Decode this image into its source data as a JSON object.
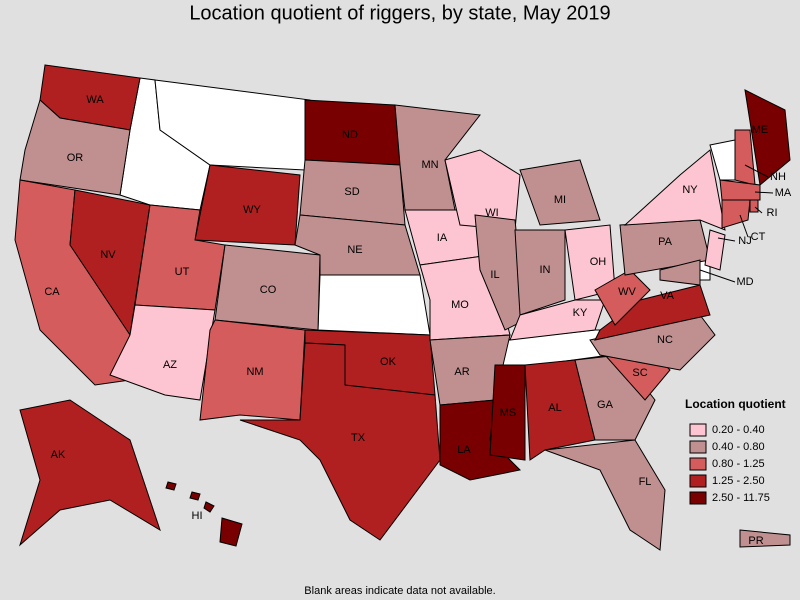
{
  "title": "Location quotient of riggers, by state, May 2019",
  "legend": {
    "title": "Location quotient",
    "entries": [
      {
        "label": "0.20 - 0.40",
        "color": "#fcc5d1"
      },
      {
        "label": "0.40 - 0.80",
        "color": "#c09090"
      },
      {
        "label": "0.80 - 1.25",
        "color": "#d55c5c"
      },
      {
        "label": "1.25 - 2.50",
        "color": "#b02020"
      },
      {
        "label": "2.50 - 11.75",
        "color": "#780000"
      }
    ]
  },
  "states": [
    {
      "label": "WA",
      "color": "#b02020"
    },
    {
      "label": "OR",
      "color": "#c09090"
    },
    {
      "label": "CA",
      "color": "#d55c5c"
    },
    {
      "label": "NV",
      "color": "#b02020"
    },
    {
      "label": "WY",
      "color": "#b02020"
    },
    {
      "label": "UT",
      "color": "#d55c5c"
    },
    {
      "label": "AZ",
      "color": "#fcc5d1"
    },
    {
      "label": "CO",
      "color": "#c09090"
    },
    {
      "label": "NM",
      "color": "#d55c5c"
    },
    {
      "label": "ND",
      "color": "#780000"
    },
    {
      "label": "SD",
      "color": "#c09090"
    },
    {
      "label": "NE",
      "color": "#c09090"
    },
    {
      "label": "OK",
      "color": "#b02020"
    },
    {
      "label": "TX",
      "color": "#b02020"
    },
    {
      "label": "MN",
      "color": "#c09090"
    },
    {
      "label": "IA",
      "color": "#fcc5d1"
    },
    {
      "label": "MO",
      "color": "#fcc5d1"
    },
    {
      "label": "AR",
      "color": "#c09090"
    },
    {
      "label": "LA",
      "color": "#780000"
    },
    {
      "label": "MS",
      "color": "#780000"
    },
    {
      "label": "AL",
      "color": "#b02020"
    },
    {
      "label": "WI",
      "color": "#fcc5d1"
    },
    {
      "label": "IL",
      "color": "#c09090"
    },
    {
      "label": "MI",
      "color": "#c09090"
    },
    {
      "label": "IN",
      "color": "#c09090"
    },
    {
      "label": "OH",
      "color": "#fcc5d1"
    },
    {
      "label": "KY",
      "color": "#fcc5d1"
    },
    {
      "label": "GA",
      "color": "#c09090"
    },
    {
      "label": "FL",
      "color": "#c09090"
    },
    {
      "label": "SC",
      "color": "#d55c5c"
    },
    {
      "label": "NC",
      "color": "#c09090"
    },
    {
      "label": "VA",
      "color": "#b02020"
    },
    {
      "label": "WV",
      "color": "#d55c5c"
    },
    {
      "label": "PA",
      "color": "#c09090"
    },
    {
      "label": "NY",
      "color": "#fcc5d1"
    },
    {
      "label": "NH",
      "color": "#d55c5c"
    },
    {
      "label": "ME",
      "color": "#780000"
    },
    {
      "label": "MA",
      "color": "#d55c5c"
    },
    {
      "label": "RI",
      "color": "#d55c5c"
    },
    {
      "label": "CT",
      "color": "#d55c5c"
    },
    {
      "label": "NJ",
      "color": "#fcc5d1"
    },
    {
      "label": "MD",
      "color": "#c09090"
    },
    {
      "label": "AK",
      "color": "#b02020"
    },
    {
      "label": "HI",
      "color": "#780000"
    },
    {
      "label": "PR",
      "color": "#c09090"
    }
  ],
  "footnote": "Blank areas indicate data not available."
}
